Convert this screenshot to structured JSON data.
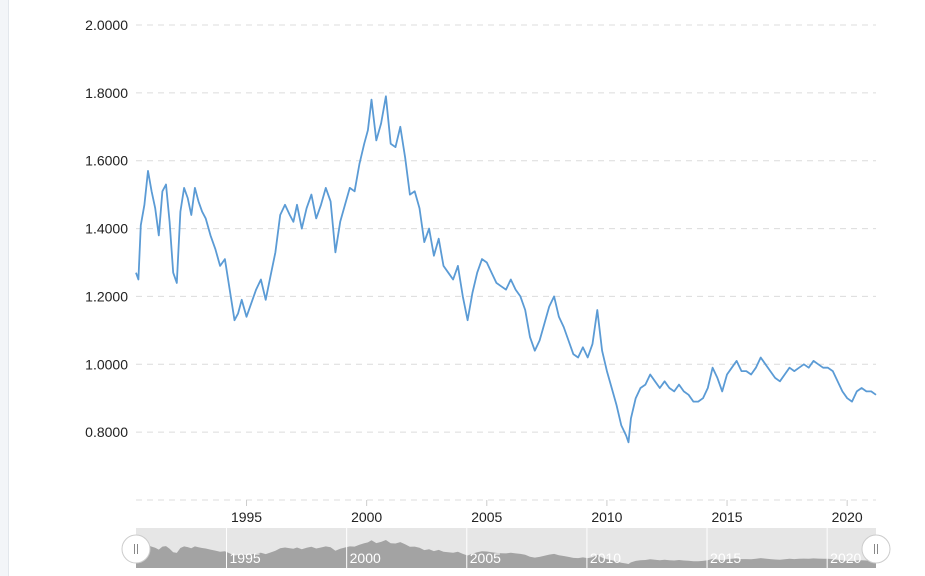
{
  "chart_data": {
    "type": "line",
    "title": "",
    "xlabel": "",
    "ylabel": "",
    "xlim": [
      1990.4,
      2021.2
    ],
    "ylim": [
      0.6,
      2.0
    ],
    "grid": true,
    "y_ticks": [
      "0.8000",
      "1.0000",
      "1.2000",
      "1.4000",
      "1.6000",
      "1.8000",
      "2.0000"
    ],
    "x_ticks": [
      "1995",
      "2000",
      "2005",
      "2010",
      "2015",
      "2020"
    ],
    "navigator_ticks": [
      "1995",
      "2000",
      "2005",
      "2010",
      "2015",
      "2020"
    ],
    "colors": {
      "line": "#5b9bd5",
      "navigator_area": "#a3a3a3",
      "grid": "#dcdcdc"
    },
    "series": [
      {
        "x": [
          1990.4,
          1990.5,
          1990.6,
          1990.75,
          1990.9,
          1991.05,
          1991.2,
          1991.35,
          1991.5,
          1991.65,
          1991.8,
          1991.95,
          1992.1,
          1992.25,
          1992.4,
          1992.55,
          1992.7,
          1992.85,
          1993.0,
          1993.15,
          1993.3,
          1993.5,
          1993.7,
          1993.9,
          1994.1,
          1994.3,
          1994.5,
          1994.65,
          1994.8,
          1995.0,
          1995.2,
          1995.4,
          1995.6,
          1995.8,
          1996.0,
          1996.2,
          1996.4,
          1996.6,
          1996.8,
          1996.95,
          1997.1,
          1997.3,
          1997.5,
          1997.7,
          1997.9,
          1998.1,
          1998.3,
          1998.5,
          1998.7,
          1998.9,
          1999.1,
          1999.3,
          1999.5,
          1999.7,
          1999.9,
          2000.05,
          2000.2,
          2000.4,
          2000.6,
          2000.8,
          2001.0,
          2001.2,
          2001.4,
          2001.6,
          2001.8,
          2002.0,
          2002.2,
          2002.4,
          2002.6,
          2002.8,
          2003.0,
          2003.2,
          2003.4,
          2003.6,
          2003.8,
          2004.0,
          2004.2,
          2004.4,
          2004.6,
          2004.8,
          2005.0,
          2005.2,
          2005.4,
          2005.6,
          2005.8,
          2006.0,
          2006.2,
          2006.4,
          2006.6,
          2006.8,
          2007.0,
          2007.2,
          2007.4,
          2007.6,
          2007.8,
          2008.0,
          2008.2,
          2008.4,
          2008.6,
          2008.8,
          2009.0,
          2009.2,
          2009.4,
          2009.6,
          2009.8,
          2010.0,
          2010.2,
          2010.4,
          2010.6,
          2010.8,
          2010.9,
          2011.0,
          2011.2,
          2011.4,
          2011.6,
          2011.8,
          2012.0,
          2012.2,
          2012.4,
          2012.6,
          2012.8,
          2013.0,
          2013.2,
          2013.4,
          2013.6,
          2013.8,
          2014.0,
          2014.2,
          2014.4,
          2014.6,
          2014.8,
          2015.0,
          2015.2,
          2015.4,
          2015.6,
          2015.8,
          2016.0,
          2016.2,
          2016.4,
          2016.6,
          2016.8,
          2017.0,
          2017.2,
          2017.4,
          2017.6,
          2017.8,
          2018.0,
          2018.2,
          2018.4,
          2018.6,
          2018.8,
          2019.0,
          2019.2,
          2019.4,
          2019.6,
          2019.8,
          2020.0,
          2020.2,
          2020.4,
          2020.6,
          2020.8,
          2021.0,
          2021.2
        ],
        "values": [
          1.27,
          1.25,
          1.41,
          1.47,
          1.57,
          1.51,
          1.46,
          1.38,
          1.51,
          1.53,
          1.42,
          1.27,
          1.24,
          1.45,
          1.52,
          1.49,
          1.44,
          1.52,
          1.48,
          1.45,
          1.43,
          1.38,
          1.34,
          1.29,
          1.31,
          1.22,
          1.13,
          1.15,
          1.19,
          1.14,
          1.18,
          1.22,
          1.25,
          1.19,
          1.26,
          1.33,
          1.44,
          1.47,
          1.44,
          1.42,
          1.47,
          1.4,
          1.46,
          1.5,
          1.43,
          1.47,
          1.52,
          1.48,
          1.33,
          1.42,
          1.47,
          1.52,
          1.51,
          1.59,
          1.65,
          1.69,
          1.78,
          1.66,
          1.71,
          1.79,
          1.65,
          1.64,
          1.7,
          1.61,
          1.5,
          1.51,
          1.46,
          1.36,
          1.4,
          1.32,
          1.37,
          1.29,
          1.27,
          1.25,
          1.29,
          1.2,
          1.13,
          1.21,
          1.27,
          1.31,
          1.3,
          1.27,
          1.24,
          1.23,
          1.22,
          1.25,
          1.22,
          1.2,
          1.16,
          1.08,
          1.04,
          1.07,
          1.12,
          1.17,
          1.2,
          1.14,
          1.11,
          1.07,
          1.03,
          1.02,
          1.05,
          1.02,
          1.06,
          1.16,
          1.04,
          0.98,
          0.93,
          0.88,
          0.82,
          0.79,
          0.77,
          0.84,
          0.9,
          0.93,
          0.94,
          0.97,
          0.95,
          0.93,
          0.95,
          0.93,
          0.92,
          0.94,
          0.92,
          0.91,
          0.89,
          0.89,
          0.9,
          0.93,
          0.99,
          0.96,
          0.92,
          0.97,
          0.99,
          1.01,
          0.98,
          0.98,
          0.97,
          0.99,
          1.02,
          1.0,
          0.98,
          0.96,
          0.95,
          0.97,
          0.99,
          0.98,
          0.99,
          1.0,
          0.99,
          1.01,
          1.0,
          0.99,
          0.99,
          0.98,
          0.95,
          0.92,
          0.9,
          0.89,
          0.92,
          0.93,
          0.92,
          0.92,
          0.91
        ]
      }
    ]
  }
}
